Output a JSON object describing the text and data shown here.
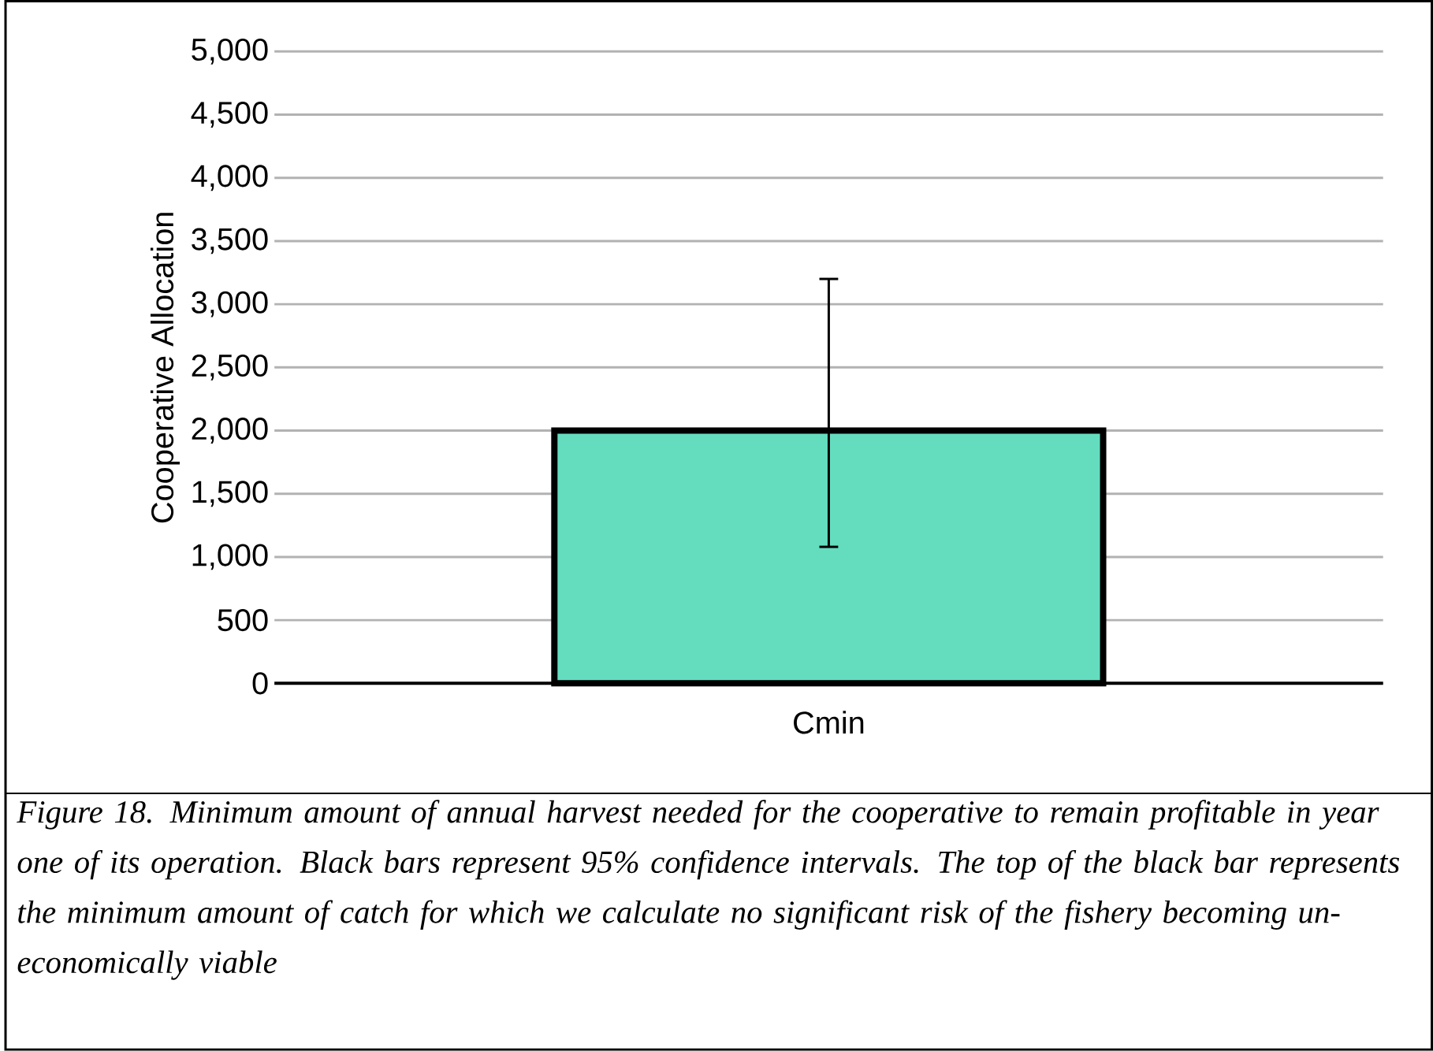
{
  "chart_data": {
    "type": "bar",
    "ylabel": "Cooperative Allocation",
    "categories": [
      "Cmin"
    ],
    "values": [
      2000
    ],
    "errors": [
      [
        1080,
        3200
      ]
    ],
    "color": "#64ddbf",
    "ylim": [
      0,
      5000
    ],
    "yticks": [
      {
        "value": 0,
        "label": "0"
      },
      {
        "value": 500,
        "label": "500"
      },
      {
        "value": 1000,
        "label": "1,000"
      },
      {
        "value": 1500,
        "label": "1,500"
      },
      {
        "value": 2000,
        "label": "2,000"
      },
      {
        "value": 2500,
        "label": "2,500"
      },
      {
        "value": 3000,
        "label": "3,000"
      },
      {
        "value": 3500,
        "label": "3,500"
      },
      {
        "value": 4000,
        "label": "4,000"
      },
      {
        "value": 4500,
        "label": "4,500"
      },
      {
        "value": 5000,
        "label": "5,000"
      }
    ],
    "grid": "y",
    "annotations": [
      "Figure 18. Minimum amount of  annual harvest needed for the cooperative to remain profitable in year one of  its operation. Black bars represent 95% confidence intervals. The top of  the black bar represents the minimum amount of  catch for which we calculate no significant risk of  the fishery becoming un-economically viable"
    ]
  }
}
